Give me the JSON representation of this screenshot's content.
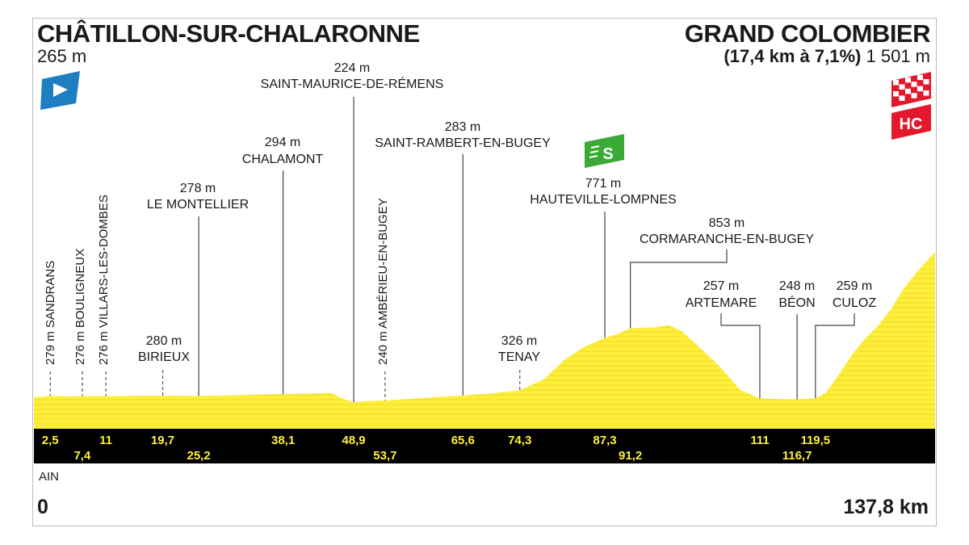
{
  "header": {
    "start_name": "CHÂTILLON-SUR-CHALARONNE",
    "start_alt": "265 m",
    "finish_name": "GRAND COLOMBIER",
    "finish_climb": "(17,4 km à 7,1%)",
    "finish_alt": "1 501 m",
    "hc_badge": "HC",
    "sprint_badge": "S"
  },
  "footer": {
    "region": "AIN",
    "start_km": "0",
    "end_km": "137,8 km"
  },
  "colors": {
    "profile_fill": "#ffef3a",
    "km_bar": "#000000",
    "km_text": "#ffef3a",
    "start_flag": "#1d7ec2",
    "sprint": "#3aa935",
    "climb": "#e3182d"
  },
  "chart_data": {
    "type": "area",
    "title": "",
    "xlabel": "",
    "ylabel": "",
    "xlim": [
      0,
      137.8
    ],
    "ylim": [
      0,
      1501
    ],
    "grid": false,
    "profile": [
      [
        0,
        265
      ],
      [
        2.5,
        279
      ],
      [
        5,
        275
      ],
      [
        7.4,
        276
      ],
      [
        11,
        276
      ],
      [
        15,
        279
      ],
      [
        19.7,
        280
      ],
      [
        25.2,
        278
      ],
      [
        30,
        284
      ],
      [
        34,
        289
      ],
      [
        38.1,
        294
      ],
      [
        42,
        298
      ],
      [
        45.5,
        303
      ],
      [
        47.5,
        248
      ],
      [
        48.9,
        224
      ],
      [
        51,
        236
      ],
      [
        53.7,
        240
      ],
      [
        57,
        250
      ],
      [
        61,
        268
      ],
      [
        65.6,
        283
      ],
      [
        70,
        300
      ],
      [
        74.3,
        326
      ],
      [
        78,
        420
      ],
      [
        81,
        580
      ],
      [
        84,
        690
      ],
      [
        87.3,
        771
      ],
      [
        89,
        800
      ],
      [
        91.2,
        853
      ],
      [
        95,
        860
      ],
      [
        97,
        880
      ],
      [
        99,
        830
      ],
      [
        102,
        680
      ],
      [
        105,
        520
      ],
      [
        108,
        330
      ],
      [
        111,
        257
      ],
      [
        114,
        252
      ],
      [
        116.7,
        248
      ],
      [
        119.5,
        259
      ],
      [
        121,
        300
      ],
      [
        123,
        450
      ],
      [
        125,
        620
      ],
      [
        127,
        760
      ],
      [
        129,
        870
      ],
      [
        131,
        1010
      ],
      [
        133,
        1190
      ],
      [
        135,
        1330
      ],
      [
        137.8,
        1501
      ]
    ],
    "markers": [
      {
        "km": 2.5,
        "alt": "279 m",
        "name": "SANDRANS",
        "orient": "vertical"
      },
      {
        "km": 7.4,
        "alt": "276 m",
        "name": "BOULIGNEUX",
        "orient": "vertical"
      },
      {
        "km": 11,
        "alt": "276 m",
        "name": "VILLARS-LES-DOMBES",
        "orient": "vertical"
      },
      {
        "km": 19.7,
        "alt": "280 m",
        "name": "BIRIEUX",
        "orient": "horizontal"
      },
      {
        "km": 25.2,
        "alt": "278 m",
        "name": "LE MONTELLIER",
        "orient": "horizontal"
      },
      {
        "km": 38.1,
        "alt": "294 m",
        "name": "CHALAMONT",
        "orient": "horizontal"
      },
      {
        "km": 48.9,
        "alt": "224 m",
        "name": "SAINT-MAURICE-DE-RÉMENS",
        "orient": "horizontal"
      },
      {
        "km": 53.7,
        "alt": "240 m",
        "name": "AMBÉRIEU-EN-BUGEY",
        "orient": "vertical"
      },
      {
        "km": 65.6,
        "alt": "283 m",
        "name": "SAINT-RAMBERT-EN-BUGEY",
        "orient": "horizontal"
      },
      {
        "km": 74.3,
        "alt": "326 m",
        "name": "TENAY",
        "orient": "horizontal"
      },
      {
        "km": 87.3,
        "alt": "771 m",
        "name": "HAUTEVILLE-LOMPNES",
        "orient": "horizontal"
      },
      {
        "km": 91.2,
        "alt": "853 m",
        "name": "CORMARANCHE-EN-BUGEY",
        "orient": "horizontal"
      },
      {
        "km": 111,
        "alt": "257 m",
        "name": "ARTEMARE",
        "orient": "horizontal"
      },
      {
        "km": 116.7,
        "alt": "248 m",
        "name": "BÉON",
        "orient": "horizontal"
      },
      {
        "km": 119.5,
        "alt": "259 m",
        "name": "CULOZ",
        "orient": "horizontal"
      }
    ],
    "km_labels_top": [
      "2,5",
      "11",
      "19,7",
      "38,1",
      "48,9",
      "65,6",
      "74,3",
      "87,3",
      "111",
      "119,5"
    ],
    "km_labels_bottom": [
      "7,4",
      "25,2",
      "53,7",
      "91,2",
      "116,7"
    ]
  }
}
